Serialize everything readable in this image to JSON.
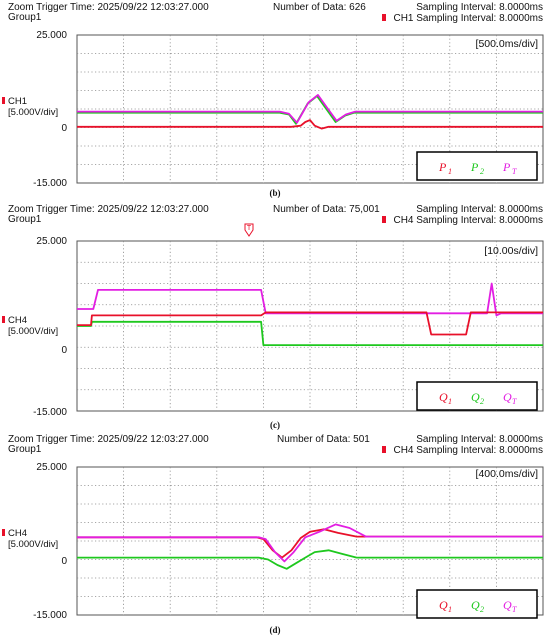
{
  "chart_data": [
    {
      "type": "line",
      "header": {
        "trigger": "Zoom Trigger Time: 2025/09/22 12:03:27.000",
        "group": "Group1",
        "count": "Number of Data: 626",
        "interval": "Sampling Interval:  8.0000ms",
        "channel_interval": "CH1 Sampling Interval:  8.0000ms"
      },
      "channel": "CH1",
      "volts_div": "[5.000V/div]",
      "time_div": "[500.0ms/div]",
      "y_ticks": [
        "25.000",
        "0",
        "-15.000"
      ],
      "ylim": [
        -15,
        25
      ],
      "xlim": [
        0,
        10
      ],
      "grid": true,
      "legend_position": "bottom-right",
      "legend": [
        {
          "name": "P",
          "sub": "1",
          "color": "#e8102a"
        },
        {
          "name": "P",
          "sub": "2",
          "color": "#1ec81e"
        },
        {
          "name": "P",
          "sub": "T",
          "color": "#e21ee2"
        }
      ],
      "series": [
        {
          "color": "#e8102a",
          "x": [
            0,
            4.6,
            4.8,
            4.9,
            5.0,
            5.1,
            5.25,
            5.4,
            10
          ],
          "y": [
            0.2,
            0.2,
            0.5,
            1.5,
            2.0,
            0.5,
            -0.3,
            0.2,
            0.2
          ]
        },
        {
          "color": "#1ec81e",
          "x": [
            0,
            4.35,
            4.55,
            4.7,
            4.95,
            5.15,
            5.35,
            5.55,
            5.75,
            5.95,
            10
          ],
          "y": [
            4.0,
            4.0,
            3.5,
            1.0,
            6.5,
            8.5,
            5.0,
            1.5,
            3.2,
            4.0,
            4.0
          ]
        },
        {
          "color": "#e21ee2",
          "x": [
            0,
            4.35,
            4.55,
            4.72,
            4.97,
            5.17,
            5.37,
            5.57,
            5.77,
            5.97,
            10
          ],
          "y": [
            4.3,
            4.3,
            3.7,
            1.3,
            6.8,
            8.8,
            5.3,
            1.8,
            3.5,
            4.3,
            4.3
          ]
        }
      ],
      "caption": "(b)"
    },
    {
      "type": "line",
      "header": {
        "trigger": "Zoom Trigger Time: 2025/09/22 12:03:27.000",
        "group": "Group1",
        "count": "Number of Data: 75,001",
        "interval": "Sampling Interval:  8.0000ms",
        "channel_interval": "CH4 Sampling Interval:  8.0000ms"
      },
      "trigger_mark": "T",
      "channel": "CH4",
      "volts_div": "[5.000V/div]",
      "time_div": "[10.00s/div]",
      "y_ticks": [
        "25.000",
        "0",
        "-15.000"
      ],
      "ylim": [
        -15,
        25
      ],
      "xlim": [
        0,
        10
      ],
      "grid": true,
      "legend_position": "bottom-right",
      "legend": [
        {
          "name": "Q",
          "sub": "1",
          "color": "#e8102a"
        },
        {
          "name": "Q",
          "sub": "2",
          "color": "#1ec81e"
        },
        {
          "name": "Q",
          "sub": "T",
          "color": "#e21ee2"
        }
      ],
      "series": [
        {
          "color": "#1ec81e",
          "x": [
            0,
            0.3,
            0.32,
            3.95,
            4.0,
            10
          ],
          "y": [
            5.0,
            5.0,
            6.0,
            6.0,
            0.5,
            0.5
          ]
        },
        {
          "color": "#e21ee2",
          "x": [
            0,
            0.35,
            0.45,
            3.95,
            4.05,
            8.8,
            8.9,
            9.0,
            9.1,
            10
          ],
          "y": [
            9.0,
            9.0,
            13.5,
            13.5,
            8.0,
            8.0,
            15.0,
            7.5,
            8.0,
            8.0
          ]
        },
        {
          "color": "#e8102a",
          "x": [
            0,
            0.3,
            0.32,
            3.95,
            4.05,
            7.5,
            7.6,
            8.35,
            8.45,
            10
          ],
          "y": [
            5.2,
            5.2,
            7.5,
            7.5,
            8.2,
            8.2,
            3.0,
            3.0,
            8.2,
            8.2
          ]
        }
      ],
      "caption": "(c)"
    },
    {
      "type": "line",
      "header": {
        "trigger": "Zoom Trigger Time: 2025/09/22 12:03:27.000",
        "group": "Group1",
        "count": "Number of Data: 501",
        "interval": "Sampling Interval:  8.0000ms",
        "channel_interval": "CH4 Sampling Interval:  8.0000ms"
      },
      "channel": "CH4",
      "volts_div": "[5.000V/div]",
      "time_div": "[400.0ms/div]",
      "y_ticks": [
        "25.000",
        "0",
        "-15.000"
      ],
      "ylim": [
        -15,
        25
      ],
      "xlim": [
        0,
        10
      ],
      "grid": true,
      "legend_position": "bottom-right",
      "legend": [
        {
          "name": "Q",
          "sub": "1",
          "color": "#e8102a"
        },
        {
          "name": "Q",
          "sub": "2",
          "color": "#1ec81e"
        },
        {
          "name": "Q",
          "sub": "T",
          "color": "#e21ee2"
        }
      ],
      "series": [
        {
          "color": "#1ec81e",
          "x": [
            0,
            3.9,
            4.1,
            4.3,
            4.5,
            4.7,
            4.9,
            5.1,
            5.4,
            5.7,
            6.0,
            10
          ],
          "y": [
            0.5,
            0.5,
            0,
            -1.5,
            -2.5,
            -1.0,
            0.5,
            2.0,
            2.5,
            1.5,
            0.5,
            0.5
          ]
        },
        {
          "color": "#e8102a",
          "x": [
            0,
            3.85,
            4.0,
            4.2,
            4.4,
            4.6,
            4.8,
            5.0,
            5.3,
            5.6,
            6.0,
            10
          ],
          "y": [
            6.0,
            6.0,
            5.5,
            2.5,
            0.5,
            2.5,
            5.8,
            7.5,
            8.2,
            7.2,
            6.2,
            6.2
          ]
        },
        {
          "color": "#e21ee2",
          "x": [
            0,
            3.9,
            4.05,
            4.25,
            4.45,
            4.65,
            4.9,
            5.2,
            5.55,
            5.85,
            6.2,
            10
          ],
          "y": [
            6.0,
            6.0,
            5.5,
            2.0,
            -0.5,
            2.0,
            6.0,
            7.5,
            9.5,
            8.5,
            6.2,
            6.2
          ]
        }
      ],
      "caption": "(d)"
    }
  ]
}
